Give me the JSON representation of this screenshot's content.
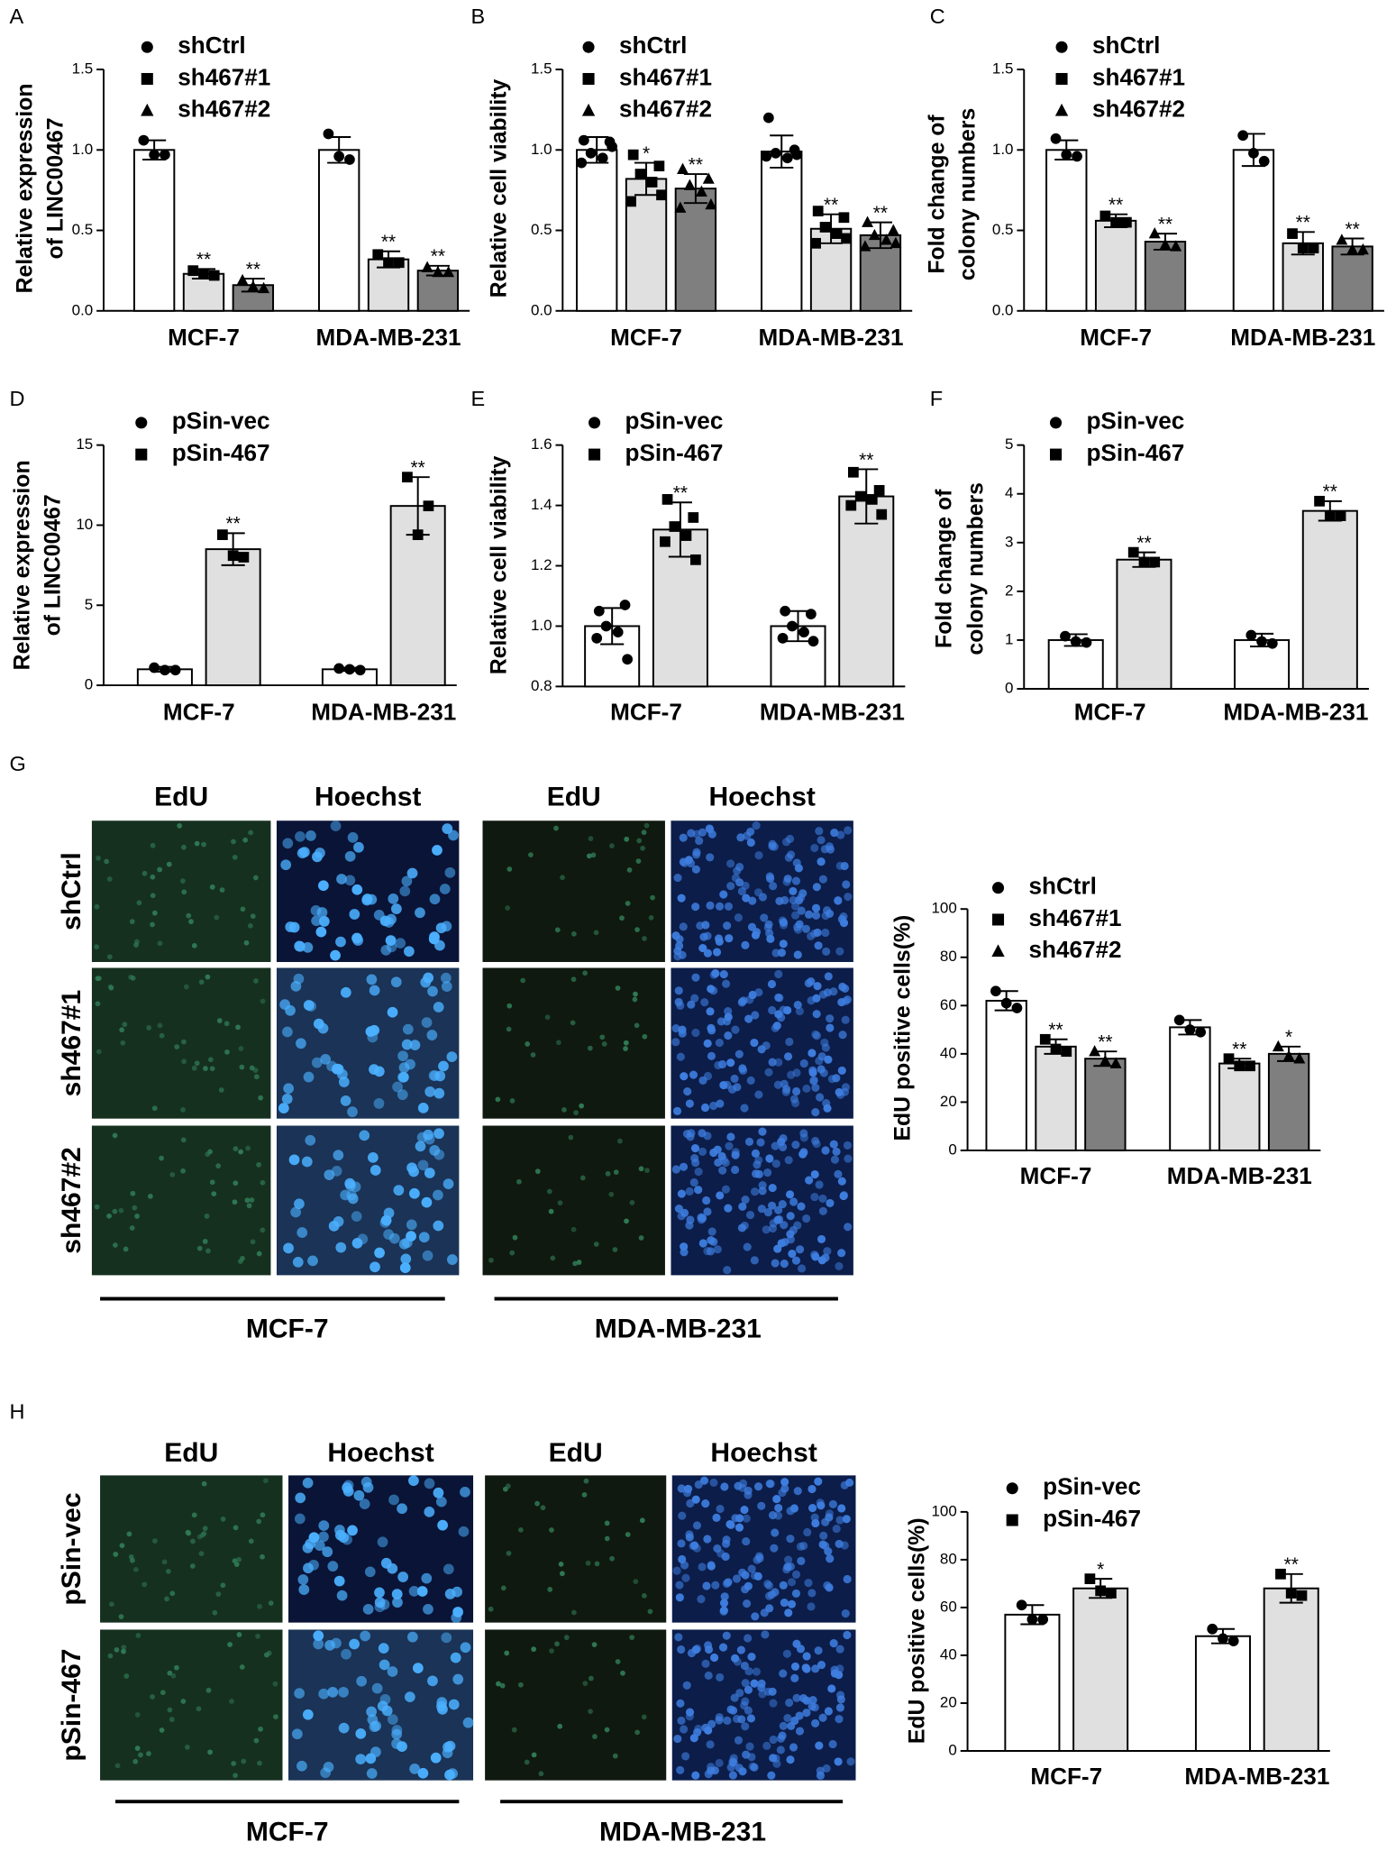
{
  "chart_data": [
    {
      "type": "bar",
      "panel": "A",
      "ylabel": [
        "Relative expression",
        "of LINC00467"
      ],
      "categories": [
        "MCF-7",
        "MDA-MB-231"
      ],
      "ylim": [
        0,
        1.5
      ],
      "yticks": [
        {
          "value": 0,
          "label": "0.0"
        },
        0.5,
        {
          "value": 1,
          "label": "1.0"
        },
        1.5
      ],
      "series": [
        {
          "name": "shCtrl",
          "color": "#ffffff",
          "marker": "circle",
          "values": [
            1.0,
            1.0
          ],
          "error": [
            0.06,
            0.08
          ],
          "points": [
            [
              1.06,
              0.97,
              0.97
            ],
            [
              1.1,
              0.94,
              0.96
            ]
          ]
        },
        {
          "name": "sh467#1",
          "color": "#e0e0e0",
          "marker": "square",
          "values": [
            0.23,
            0.32
          ],
          "error": [
            0.03,
            0.05
          ],
          "points": [
            [
              0.25,
              0.22,
              0.23
            ],
            [
              0.35,
              0.3,
              0.3
            ]
          ],
          "stars": [
            "**",
            "**"
          ]
        },
        {
          "name": "sh467#2",
          "color": "#7f7f7f",
          "marker": "triangle",
          "values": [
            0.16,
            0.25
          ],
          "error": [
            0.04,
            0.03
          ],
          "points": [
            [
              0.19,
              0.14,
              0.15
            ],
            [
              0.27,
              0.24,
              0.24
            ]
          ],
          "stars": [
            "**",
            "**"
          ]
        }
      ]
    },
    {
      "type": "bar",
      "panel": "B",
      "ylabel": [
        "Relative cell viability"
      ],
      "categories": [
        "MCF-7",
        "MDA-MB-231"
      ],
      "ylim": [
        0,
        1.5
      ],
      "yticks": [
        {
          "value": 0,
          "label": "0.0"
        },
        0.5,
        {
          "value": 1,
          "label": "1.0"
        },
        1.5
      ],
      "series": [
        {
          "name": "shCtrl",
          "color": "#ffffff",
          "marker": "circle",
          "values": [
            1.0,
            0.99
          ],
          "error": [
            0.08,
            0.1
          ],
          "points": [
            [
              1.06,
              1.05,
              0.98,
              0.95,
              0.92,
              1.02
            ],
            [
              1.2,
              1.0,
              0.98,
              0.95,
              0.96,
              0.97
            ]
          ]
        },
        {
          "name": "sh467#1",
          "color": "#e0e0e0",
          "marker": "square",
          "values": [
            0.82,
            0.51
          ],
          "error": [
            0.1,
            0.09
          ],
          "points": [
            [
              0.97,
              0.9,
              0.85,
              0.8,
              0.68,
              0.72
            ],
            [
              0.62,
              0.58,
              0.52,
              0.48,
              0.42,
              0.45
            ]
          ],
          "stars": [
            "*",
            "**"
          ]
        },
        {
          "name": "sh467#2",
          "color": "#7f7f7f",
          "marker": "triangle",
          "values": [
            0.76,
            0.47
          ],
          "error": [
            0.09,
            0.08
          ],
          "points": [
            [
              0.88,
              0.82,
              0.78,
              0.74,
              0.64,
              0.66
            ],
            [
              0.55,
              0.5,
              0.47,
              0.44,
              0.4,
              0.42
            ]
          ],
          "stars": [
            "**",
            "**"
          ]
        }
      ]
    },
    {
      "type": "bar",
      "panel": "C",
      "ylabel": [
        "Fold change of",
        "colony numbers"
      ],
      "categories": [
        "MCF-7",
        "MDA-MB-231"
      ],
      "ylim": [
        0,
        1.5
      ],
      "yticks": [
        {
          "value": 0,
          "label": "0.0"
        },
        0.5,
        {
          "value": 1,
          "label": "1.0"
        },
        1.5
      ],
      "series": [
        {
          "name": "shCtrl",
          "color": "#ffffff",
          "marker": "circle",
          "values": [
            1.0,
            1.0
          ],
          "error": [
            0.06,
            0.1
          ],
          "points": [
            [
              1.07,
              0.96,
              0.97
            ],
            [
              1.09,
              0.93,
              0.98
            ]
          ]
        },
        {
          "name": "sh467#1",
          "color": "#e0e0e0",
          "marker": "square",
          "values": [
            0.56,
            0.42
          ],
          "error": [
            0.04,
            0.07
          ],
          "points": [
            [
              0.59,
              0.55,
              0.55
            ],
            [
              0.48,
              0.39,
              0.39
            ]
          ],
          "stars": [
            "**",
            "**"
          ]
        },
        {
          "name": "sh467#2",
          "color": "#7f7f7f",
          "marker": "triangle",
          "values": [
            0.43,
            0.4
          ],
          "error": [
            0.05,
            0.05
          ],
          "points": [
            [
              0.48,
              0.4,
              0.41
            ],
            [
              0.44,
              0.38,
              0.38
            ]
          ],
          "stars": [
            "**",
            "**"
          ]
        }
      ]
    },
    {
      "type": "bar",
      "panel": "D",
      "ylabel": [
        "Relative expression",
        "of LINC00467"
      ],
      "categories": [
        "MCF-7",
        "MDA-MB-231"
      ],
      "ylim": [
        0,
        15
      ],
      "yticks": [
        0,
        5,
        10,
        15
      ],
      "series": [
        {
          "name": "pSin-vec",
          "color": "#ffffff",
          "marker": "circle",
          "values": [
            1.0,
            1.0
          ],
          "error": [
            0.15,
            0.1
          ],
          "points": [
            [
              1.1,
              0.95,
              0.95
            ],
            [
              1.05,
              0.95,
              1.0
            ]
          ]
        },
        {
          "name": "pSin-467",
          "color": "#e0e0e0",
          "marker": "square",
          "values": [
            8.5,
            11.2
          ],
          "error": [
            1.0,
            1.8
          ],
          "points": [
            [
              9.4,
              8.0,
              8.1
            ],
            [
              13.0,
              11.2,
              9.4
            ]
          ],
          "stars": [
            "**",
            "**"
          ]
        }
      ]
    },
    {
      "type": "bar",
      "panel": "E",
      "ylabel": [
        "Relative cell viability"
      ],
      "categories": [
        "MCF-7",
        "MDA-MB-231"
      ],
      "ylim": [
        0.8,
        1.6
      ],
      "yticks": [
        0.8,
        {
          "value": 1,
          "label": "1.0"
        },
        1.2,
        1.4,
        1.6
      ],
      "series": [
        {
          "name": "pSin-vec",
          "color": "#ffffff",
          "marker": "circle",
          "values": [
            1.0,
            1.0
          ],
          "error": [
            0.06,
            0.05
          ],
          "points": [
            [
              1.05,
              1.07,
              1.0,
              0.98,
              0.96,
              0.89
            ],
            [
              1.05,
              1.04,
              1.0,
              0.98,
              0.96,
              0.95
            ]
          ]
        },
        {
          "name": "pSin-467",
          "color": "#e0e0e0",
          "marker": "square",
          "values": [
            1.32,
            1.43
          ],
          "error": [
            0.09,
            0.09
          ],
          "points": [
            [
              1.42,
              1.36,
              1.33,
              1.3,
              1.28,
              1.22
            ],
            [
              1.51,
              1.45,
              1.43,
              1.42,
              1.4,
              1.37
            ]
          ],
          "stars": [
            "**",
            "**"
          ]
        }
      ]
    },
    {
      "type": "bar",
      "panel": "F",
      "ylabel": [
        "Fold change of",
        "colony numbers"
      ],
      "categories": [
        "MCF-7",
        "MDA-MB-231"
      ],
      "ylim": [
        0,
        5
      ],
      "yticks": [
        0,
        1,
        2,
        3,
        4,
        5
      ],
      "series": [
        {
          "name": "pSin-vec",
          "color": "#ffffff",
          "marker": "circle",
          "values": [
            1.0,
            1.0
          ],
          "error": [
            0.12,
            0.13
          ],
          "points": [
            [
              1.08,
              0.95,
              0.97
            ],
            [
              1.1,
              0.93,
              0.97
            ]
          ]
        },
        {
          "name": "pSin-467",
          "color": "#e0e0e0",
          "marker": "square",
          "values": [
            2.65,
            3.65
          ],
          "error": [
            0.15,
            0.2
          ],
          "points": [
            [
              2.8,
              2.6,
              2.6
            ],
            [
              3.85,
              3.55,
              3.55
            ]
          ],
          "stars": [
            "**",
            "**"
          ]
        }
      ]
    },
    {
      "type": "bar",
      "ylabel": [
        "EdU positive cells(%)"
      ],
      "categories": [
        "MCF-7",
        "MDA-MB-231"
      ],
      "ylim": [
        0,
        100
      ],
      "yticks": [
        0,
        20,
        40,
        60,
        80,
        100
      ],
      "series": [
        {
          "name": "shCtrl",
          "color": "#ffffff",
          "marker": "circle",
          "values": [
            62,
            51
          ],
          "error": [
            4,
            3
          ],
          "points": [
            [
              66,
              59,
              61
            ],
            [
              54,
              49,
              50
            ]
          ]
        },
        {
          "name": "sh467#1",
          "color": "#e0e0e0",
          "marker": "square",
          "values": [
            43,
            36
          ],
          "error": [
            3,
            2
          ],
          "points": [
            [
              46,
              41,
              42
            ],
            [
              38,
              35,
              35
            ]
          ],
          "stars": [
            "**",
            "**"
          ]
        },
        {
          "name": "sh467#2",
          "color": "#7f7f7f",
          "marker": "triangle",
          "values": [
            38,
            40
          ],
          "error": [
            3,
            3
          ],
          "points": [
            [
              41,
              36,
              37
            ],
            [
              43,
              38,
              39
            ]
          ],
          "stars": [
            "**",
            "*"
          ]
        }
      ]
    },
    {
      "type": "bar",
      "ylabel": [
        "EdU positive cells(%)"
      ],
      "categories": [
        "MCF-7",
        "MDA-MB-231"
      ],
      "ylim": [
        0,
        100
      ],
      "yticks": [
        0,
        20,
        40,
        60,
        80,
        100
      ],
      "series": [
        {
          "name": "pSin-vec",
          "color": "#ffffff",
          "marker": "circle",
          "values": [
            57,
            48
          ],
          "error": [
            4,
            3
          ],
          "points": [
            [
              61,
              55,
              55
            ],
            [
              51,
              46,
              47
            ]
          ]
        },
        {
          "name": "pSin-467",
          "color": "#e0e0e0",
          "marker": "square",
          "values": [
            68,
            68
          ],
          "error": [
            4,
            6
          ],
          "points": [
            [
              72,
              66,
              67
            ],
            [
              74,
              65,
              66
            ]
          ],
          "stars": [
            "*",
            "**"
          ]
        }
      ]
    }
  ],
  "micrographs": [
    {
      "panel": "G",
      "columns": [
        "EdU",
        "Hoechst",
        "EdU",
        "Hoechst"
      ],
      "rows": [
        "shCtrl",
        "sh467#1",
        "sh467#2"
      ],
      "groups": [
        "MCF-7",
        "MDA-MB-231"
      ]
    },
    {
      "panel": "H",
      "columns": [
        "EdU",
        "Hoechst",
        "EdU",
        "Hoechst"
      ],
      "rows": [
        "pSin-vec",
        "pSin-467"
      ],
      "groups": [
        "MCF-7",
        "MDA-MB-231"
      ]
    }
  ]
}
